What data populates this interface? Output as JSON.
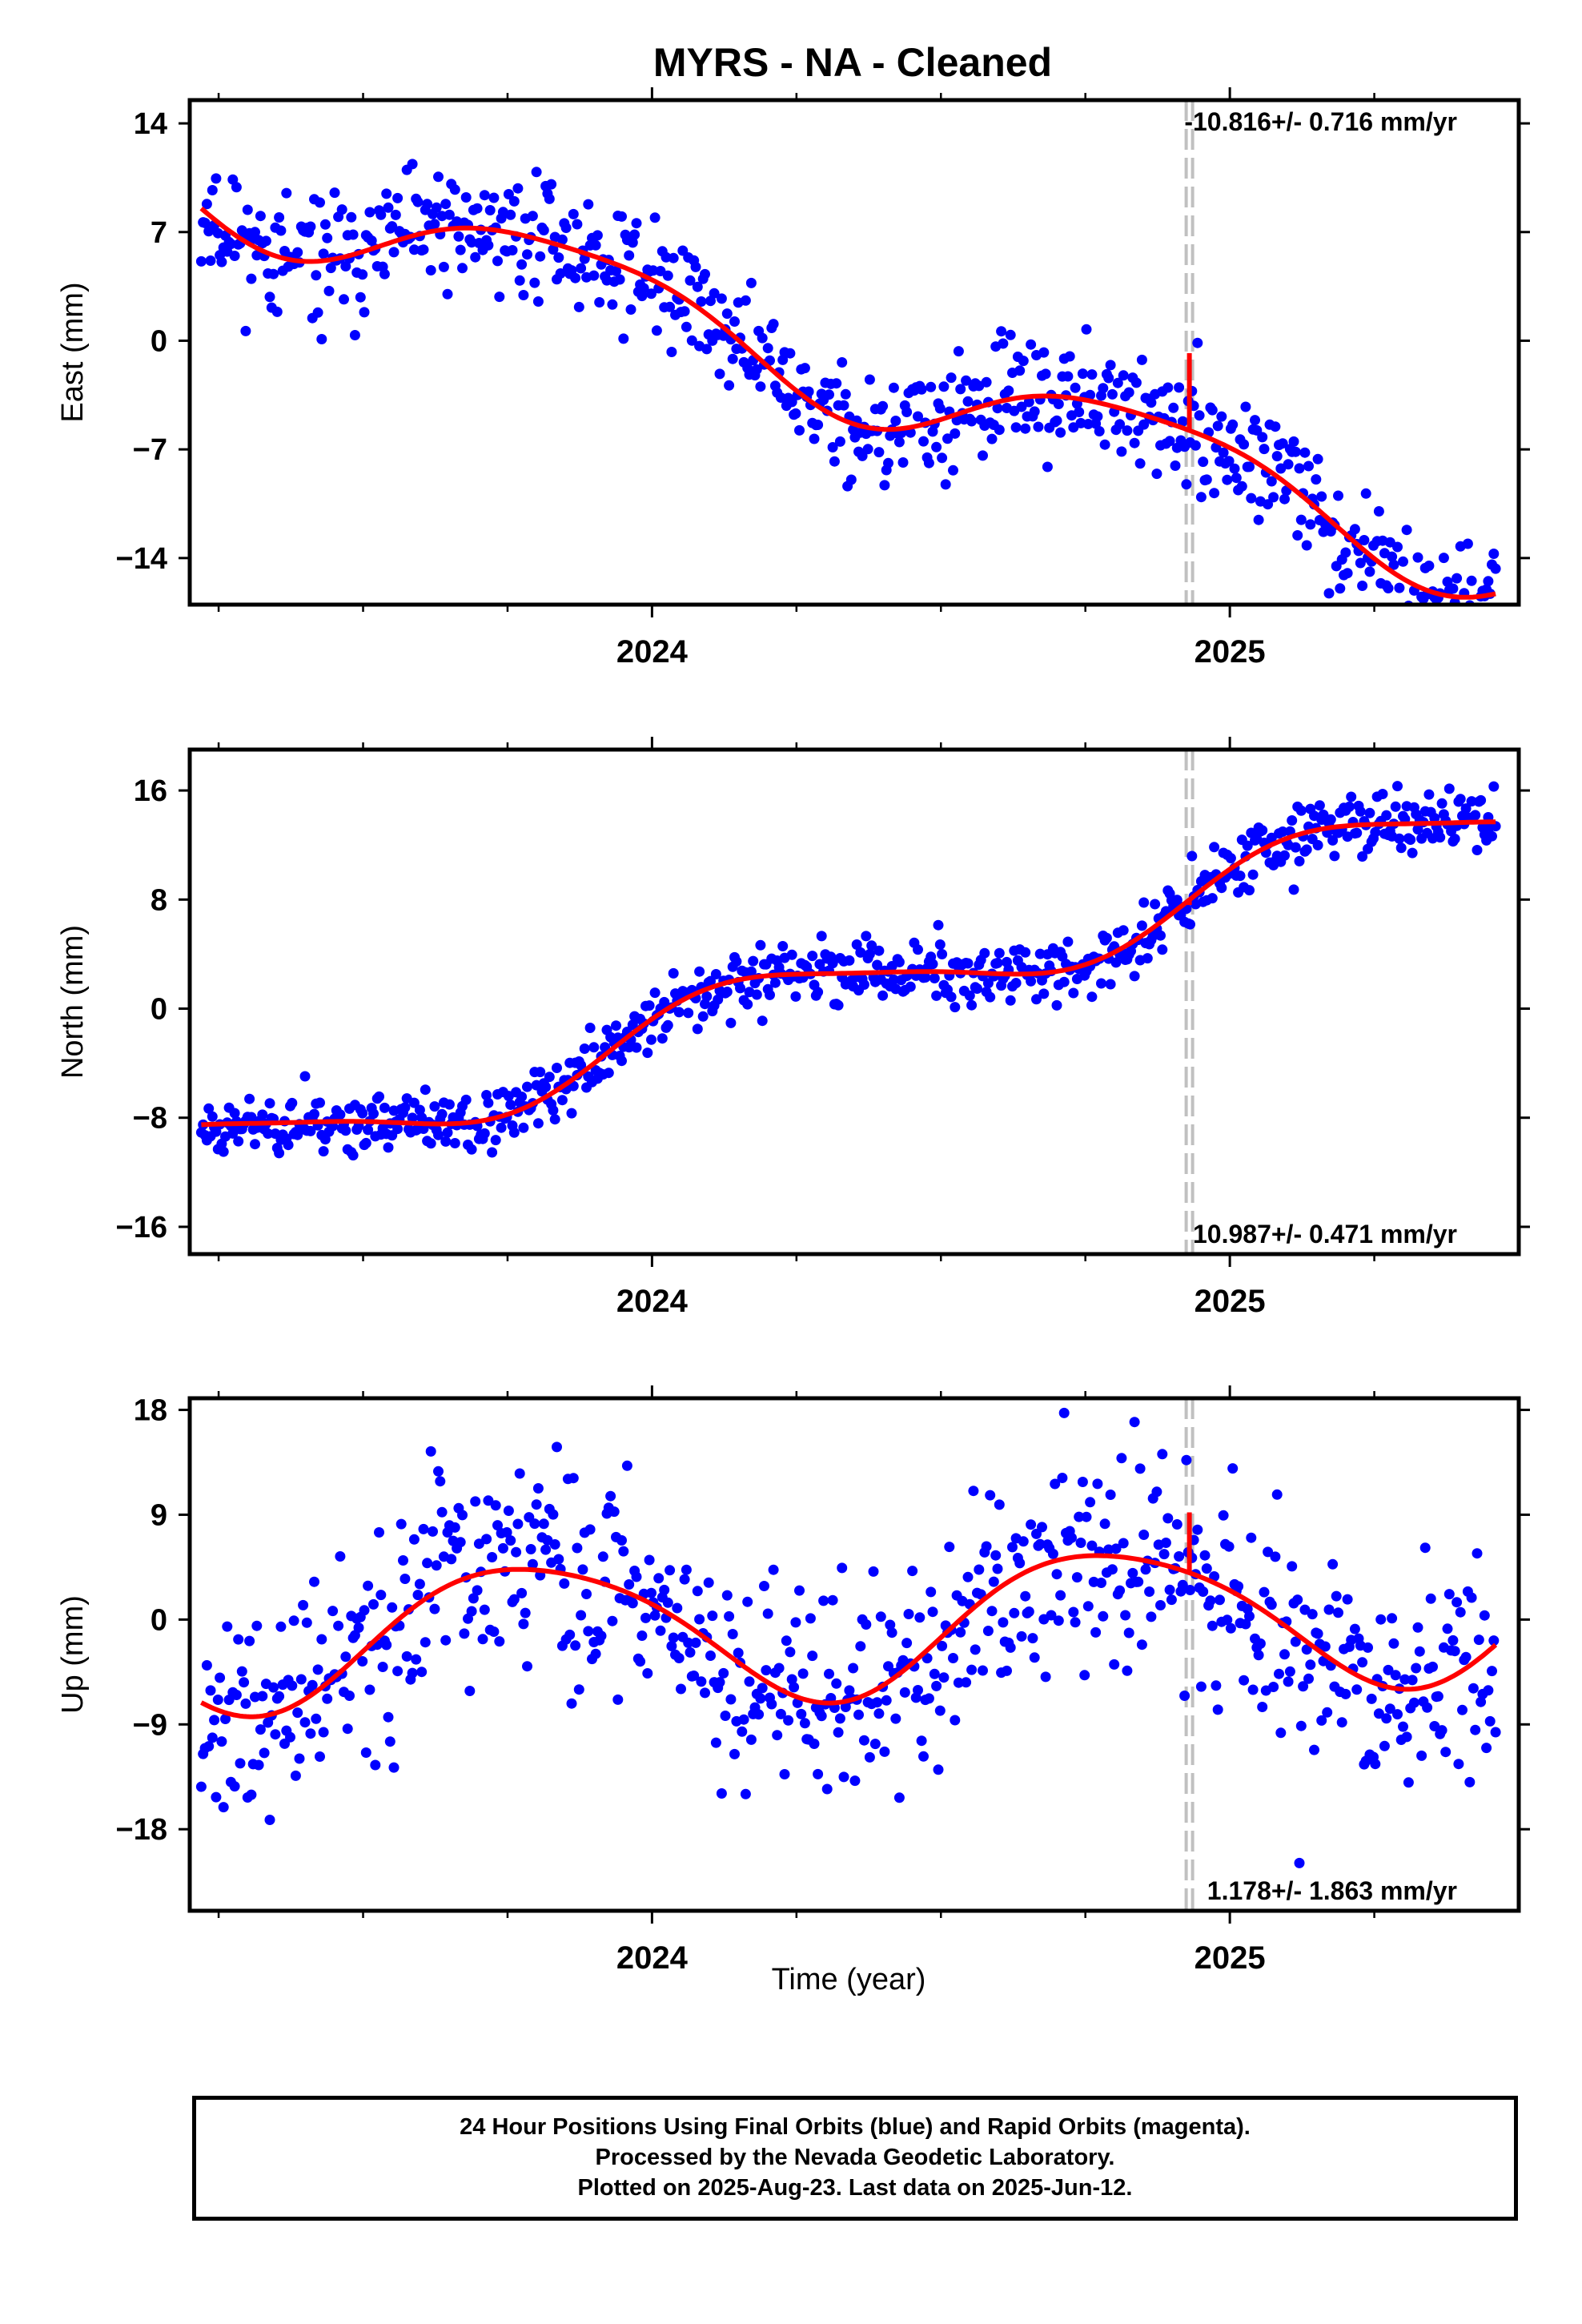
{
  "title": "MYRS  - NA - Cleaned",
  "xlabel": "Time (year)",
  "caption": {
    "line1": "24 Hour Positions Using Final Orbits (blue) and Rapid Orbits (magenta).",
    "line2": "Processed by the Nevada Geodetic Laboratory.",
    "line3": "Plotted on 2025-Aug-23. Last data on 2025-Jun-12."
  },
  "colors": {
    "final_orbits": "#0000ff",
    "model": "#ff0000",
    "event_line": "#c0c0c0"
  },
  "chart_data": [
    {
      "type": "scatter",
      "component": "east",
      "ylabel": "East (mm)",
      "xlim": [
        2023.2,
        2025.5
      ],
      "ylim": [
        -17,
        15.5
      ],
      "yticks": [
        -14,
        -7,
        0,
        7,
        14
      ],
      "xtick_labels": [
        2024,
        2025
      ],
      "minor_xticks": [
        2023.25,
        2023.5,
        2023.75,
        2024.25,
        2024.5,
        2024.75,
        2025.25
      ],
      "event_line_x": 2024.93,
      "rate_label": "-10.816+/- 0.716 mm/yr",
      "rate_label_position": "top",
      "rate": -10.816,
      "intercept_x": 2024.5,
      "intercept": -3.4,
      "seasonal": [
        {
          "a": 3.0,
          "phase": 2.5
        },
        {
          "a": 0.6,
          "phase": 0.2
        }
      ],
      "offset_spike": {
        "x": 2024.93,
        "top": -0.8
      },
      "scatter_sigma": 1.9,
      "point_count": 700,
      "seed": 11
    },
    {
      "type": "scatter",
      "component": "north",
      "ylabel": "North (mm)",
      "xlim": [
        2023.2,
        2025.5
      ],
      "ylim": [
        -18,
        19
      ],
      "yticks": [
        -16,
        -8,
        0,
        8,
        16
      ],
      "xtick_labels": [
        2024,
        2025
      ],
      "minor_xticks": [
        2023.25,
        2023.5,
        2023.75,
        2024.25,
        2024.5,
        2024.75,
        2025.25
      ],
      "event_line_x": 2024.93,
      "rate_label": "10.987+/- 0.471 mm/yr",
      "rate_label_position": "bottom",
      "rate": 10.987,
      "intercept_x": 2024.5,
      "intercept": 3.3,
      "seasonal": [
        {
          "a": 2.6,
          "phase": 0.4
        },
        {
          "a": 0.5,
          "phase": 1.0
        }
      ],
      "offset_spike": {
        "x": 2024.93,
        "top": 7.6
      },
      "scatter_sigma": 1.1,
      "point_count": 700,
      "seed": 23
    },
    {
      "type": "scatter",
      "component": "up",
      "ylabel": "Up (mm)",
      "xlim": [
        2023.2,
        2025.5
      ],
      "ylim": [
        -25,
        19
      ],
      "yticks": [
        -18,
        -9,
        0,
        9,
        18
      ],
      "xtick_labels": [
        2024,
        2025
      ],
      "minor_xticks": [
        2023.25,
        2023.5,
        2023.75,
        2024.25,
        2024.5,
        2024.75,
        2025.25
      ],
      "event_line_x": 2024.93,
      "rate_label": "1.178+/- 1.863 mm/yr",
      "rate_label_position": "bottom",
      "rate": 1.178,
      "intercept_x": 2024.5,
      "intercept": -0.2,
      "seasonal": [
        {
          "a": 6.0,
          "phase": 2.85
        },
        {
          "a": 0.8,
          "phase": 0.5
        }
      ],
      "offset_spike": {
        "x": 2024.93,
        "top": 9.2
      },
      "scatter_sigma": 4.6,
      "point_count": 700,
      "seed": 37
    }
  ]
}
